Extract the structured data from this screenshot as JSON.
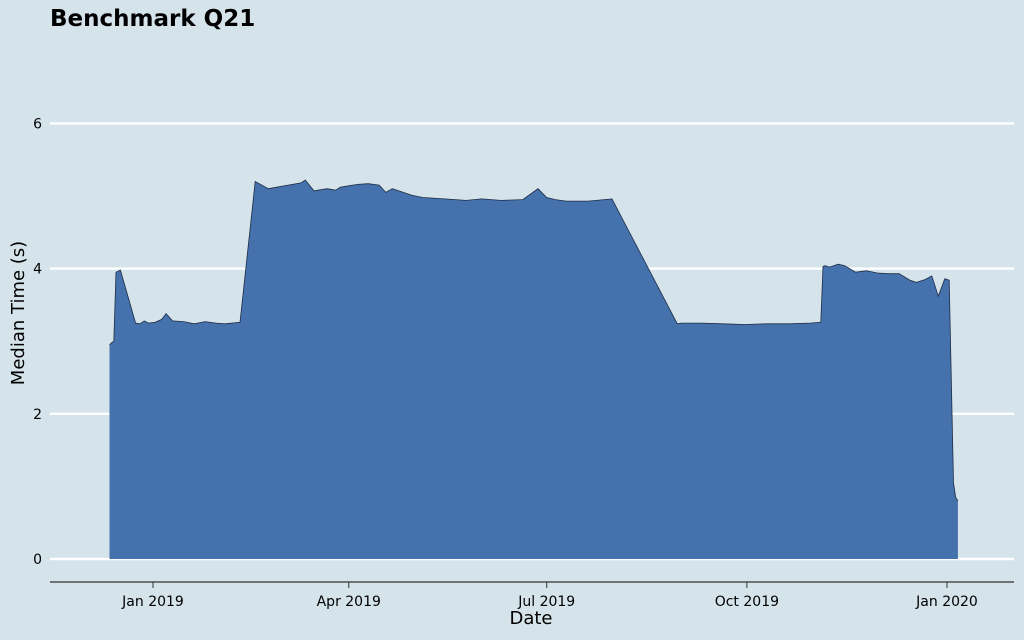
{
  "chart_data": {
    "type": "area",
    "title": "Benchmark Q21",
    "xlabel": "Date",
    "ylabel": "Median Time (s)",
    "ylim": [
      0,
      7
    ],
    "xlim": [
      "2018-12-01",
      "2020-01-31"
    ],
    "yticks": [
      0,
      2,
      4,
      6
    ],
    "ytick_labels": [
      "0",
      "2",
      "4",
      "6"
    ],
    "xticks": [
      "2019-01-01",
      "2019-04-01",
      "2019-07-01",
      "2019-10-01",
      "2020-01-01"
    ],
    "xtick_labels": [
      "Jan 2019",
      "Apr 2019",
      "Jul 2019",
      "Oct 2019",
      "Jan 2020"
    ],
    "grid": "horizontal",
    "colors": {
      "fill": "#4571ad",
      "line": "#1e2d45",
      "background": "#d5e3ea",
      "grid": "#ffffff"
    },
    "series": [
      {
        "x": [
          "2018-12-12",
          "2018-12-13",
          "2018-12-14",
          "2018-12-15",
          "2018-12-17",
          "2018-12-24",
          "2018-12-26",
          "2018-12-28",
          "2018-12-30",
          "2019-01-02",
          "2019-01-05",
          "2019-01-07",
          "2019-01-10",
          "2019-01-15",
          "2019-01-20",
          "2019-01-25",
          "2019-01-30",
          "2019-02-03",
          "2019-02-10",
          "2019-02-17",
          "2019-02-23",
          "2019-03-10",
          "2019-03-12",
          "2019-03-16",
          "2019-03-18",
          "2019-03-22",
          "2019-03-26",
          "2019-03-28",
          "2019-04-01",
          "2019-04-05",
          "2019-04-10",
          "2019-04-15",
          "2019-04-18",
          "2019-04-21",
          "2019-04-30",
          "2019-05-05",
          "2019-05-15",
          "2019-05-25",
          "2019-06-01",
          "2019-06-10",
          "2019-06-20",
          "2019-06-27",
          "2019-07-01",
          "2019-07-05",
          "2019-07-10",
          "2019-07-20",
          "2019-07-31",
          "2019-08-30",
          "2019-09-01",
          "2019-09-10",
          "2019-09-20",
          "2019-09-30",
          "2019-10-10",
          "2019-10-20",
          "2019-10-30",
          "2019-11-04",
          "2019-11-05",
          "2019-11-06",
          "2019-11-08",
          "2019-11-12",
          "2019-11-15",
          "2019-11-20",
          "2019-11-25",
          "2019-11-30",
          "2019-12-05",
          "2019-12-10",
          "2019-12-15",
          "2019-12-18",
          "2019-12-22",
          "2019-12-25",
          "2019-12-28",
          "2019-12-31",
          "2020-01-02",
          "2020-01-04",
          "2020-01-05",
          "2020-01-06"
        ],
        "y": [
          2.95,
          2.98,
          3.0,
          3.95,
          3.98,
          3.25,
          3.24,
          3.28,
          3.25,
          3.26,
          3.3,
          3.38,
          3.28,
          3.27,
          3.24,
          3.27,
          3.25,
          3.24,
          3.26,
          5.2,
          5.1,
          5.18,
          5.22,
          5.07,
          5.08,
          5.1,
          5.08,
          5.12,
          5.14,
          5.16,
          5.17,
          5.15,
          5.05,
          5.1,
          5.01,
          4.98,
          4.96,
          4.94,
          4.96,
          4.94,
          4.95,
          5.1,
          4.98,
          4.95,
          4.93,
          4.93,
          4.96,
          3.24,
          3.25,
          3.25,
          3.24,
          3.23,
          3.24,
          3.24,
          3.25,
          3.26,
          4.03,
          4.04,
          4.02,
          4.06,
          4.04,
          3.95,
          3.97,
          3.94,
          3.93,
          3.93,
          3.84,
          3.81,
          3.85,
          3.9,
          3.62,
          3.86,
          3.84,
          1.05,
          0.85,
          0.8
        ]
      }
    ]
  }
}
